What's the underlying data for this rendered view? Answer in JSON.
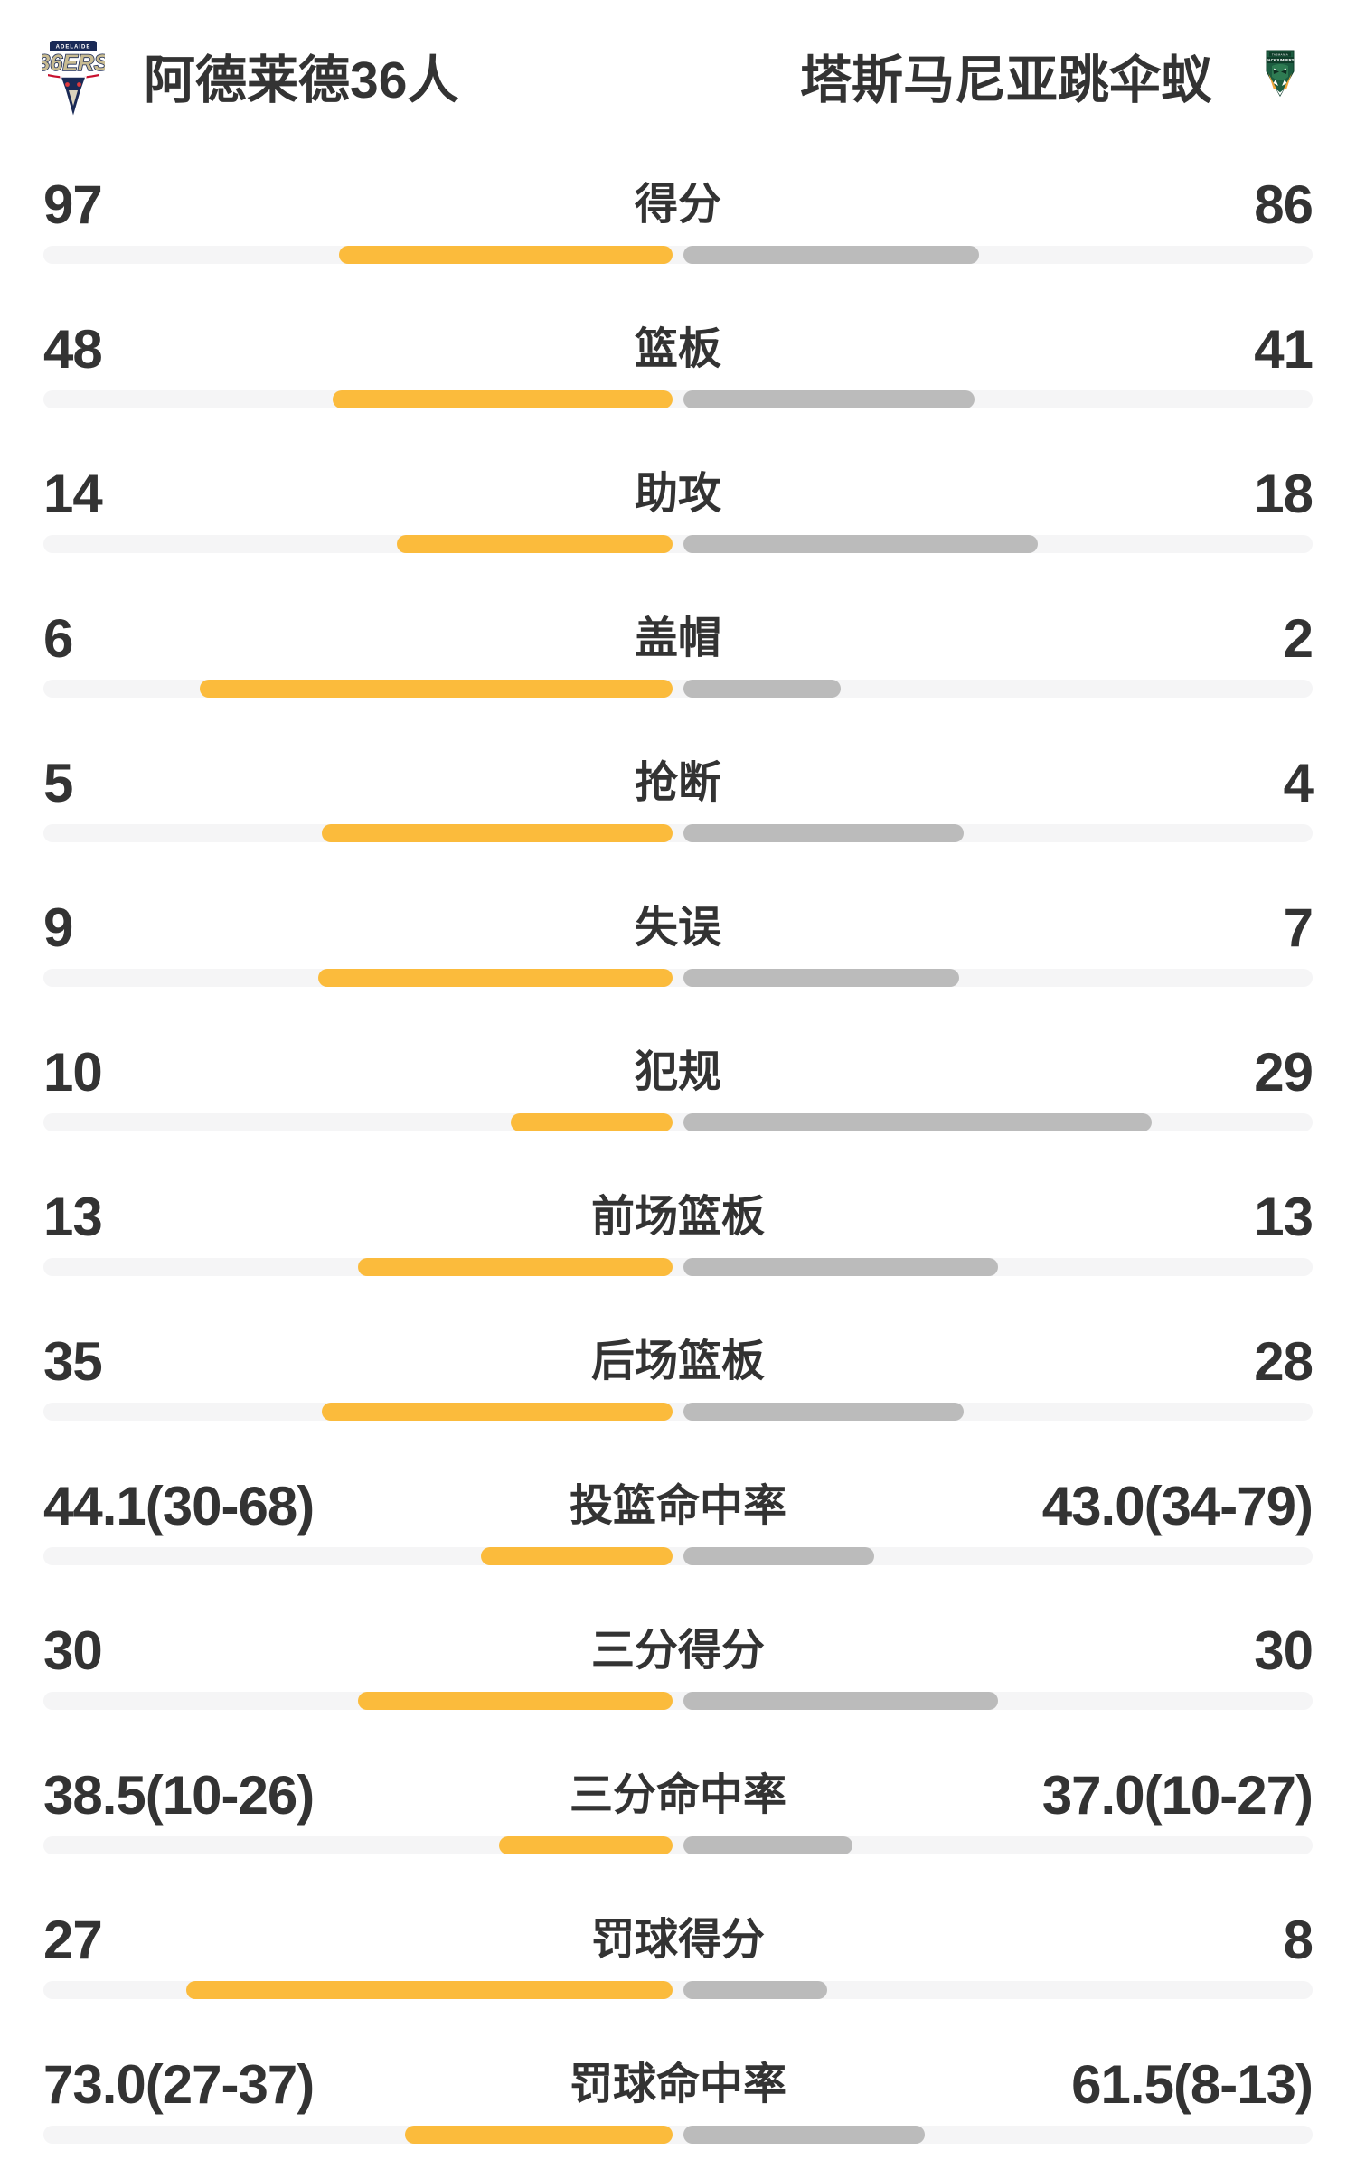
{
  "header": {
    "home": {
      "name": "阿德莱德36人",
      "logo_banner": "ADELAIDE",
      "logo_text": "36ERS"
    },
    "away": {
      "name": "塔斯马尼亚跳伞蚁",
      "logo_banner": "TASMANIA",
      "logo_text": "JACKJUMPERS"
    }
  },
  "colors": {
    "home_bar": "#FBBB3C",
    "away_bar": "#BBBBBB",
    "track": "#F5F5F6",
    "text": "#333333",
    "home_logo_navy": "#1A2A56",
    "home_logo_tan": "#C9BC92",
    "home_logo_red": "#C8102E",
    "away_logo_green": "#1C5C40",
    "away_logo_dark": "#0F3D2A",
    "away_logo_gold": "#EFA73D"
  },
  "chart_data": {
    "type": "bar",
    "orientation": "center-split horizontal comparison",
    "categories": [
      "得分",
      "篮板",
      "助攻",
      "盖帽",
      "抢断",
      "失误",
      "犯规",
      "前场篮板",
      "后场篮板",
      "投篮命中率",
      "三分得分",
      "三分命中率",
      "罚球得分",
      "罚球命中率"
    ],
    "series": [
      {
        "name": "阿德莱德36人",
        "values": [
          97,
          48,
          14,
          6,
          5,
          9,
          10,
          13,
          35,
          44.1,
          30,
          38.5,
          27,
          73.0
        ]
      },
      {
        "name": "塔斯马尼亚跳伞蚁",
        "values": [
          86,
          41,
          18,
          2,
          4,
          7,
          29,
          13,
          28,
          43.0,
          30,
          37.0,
          8,
          61.5
        ]
      }
    ],
    "rows": [
      {
        "label": "得分",
        "left": "97",
        "right": "86",
        "left_pct": 52.5,
        "right_pct": 46.6
      },
      {
        "label": "篮板",
        "left": "48",
        "right": "41",
        "left_pct": 53.6,
        "right_pct": 45.8
      },
      {
        "label": "助攻",
        "left": "14",
        "right": "18",
        "left_pct": 43.4,
        "right_pct": 55.9
      },
      {
        "label": "盖帽",
        "left": "6",
        "right": "2",
        "left_pct": 74.5,
        "right_pct": 24.8
      },
      {
        "label": "抢断",
        "left": "5",
        "right": "4",
        "left_pct": 55.2,
        "right_pct": 44.2
      },
      {
        "label": "失误",
        "left": "9",
        "right": "7",
        "left_pct": 55.9,
        "right_pct": 43.4
      },
      {
        "label": "犯规",
        "left": "10",
        "right": "29",
        "left_pct": 25.5,
        "right_pct": 73.8
      },
      {
        "label": "前场篮板",
        "left": "13",
        "right": "13",
        "left_pct": 49.6,
        "right_pct": 49.6
      },
      {
        "label": "后场篮板",
        "left": "35",
        "right": "28",
        "left_pct": 55.2,
        "right_pct": 44.2
      },
      {
        "label": "投篮命中率",
        "left": "44.1(30-68)",
        "right": "43.0(34-79)",
        "left_pct": 30.2,
        "right_pct": 30.1
      },
      {
        "label": "三分得分",
        "left": "30",
        "right": "30",
        "left_pct": 49.6,
        "right_pct": 49.6
      },
      {
        "label": "三分命中率",
        "left": "38.5(10-26)",
        "right": "37.0(10-27)",
        "left_pct": 27.4,
        "right_pct": 26.6
      },
      {
        "label": "罚球得分",
        "left": "27",
        "right": "8",
        "left_pct": 76.6,
        "right_pct": 22.6
      },
      {
        "label": "罚球命中率",
        "left": "73.0(27-37)",
        "right": "61.5(8-13)",
        "left_pct": 42.2,
        "right_pct": 38.0
      }
    ]
  }
}
